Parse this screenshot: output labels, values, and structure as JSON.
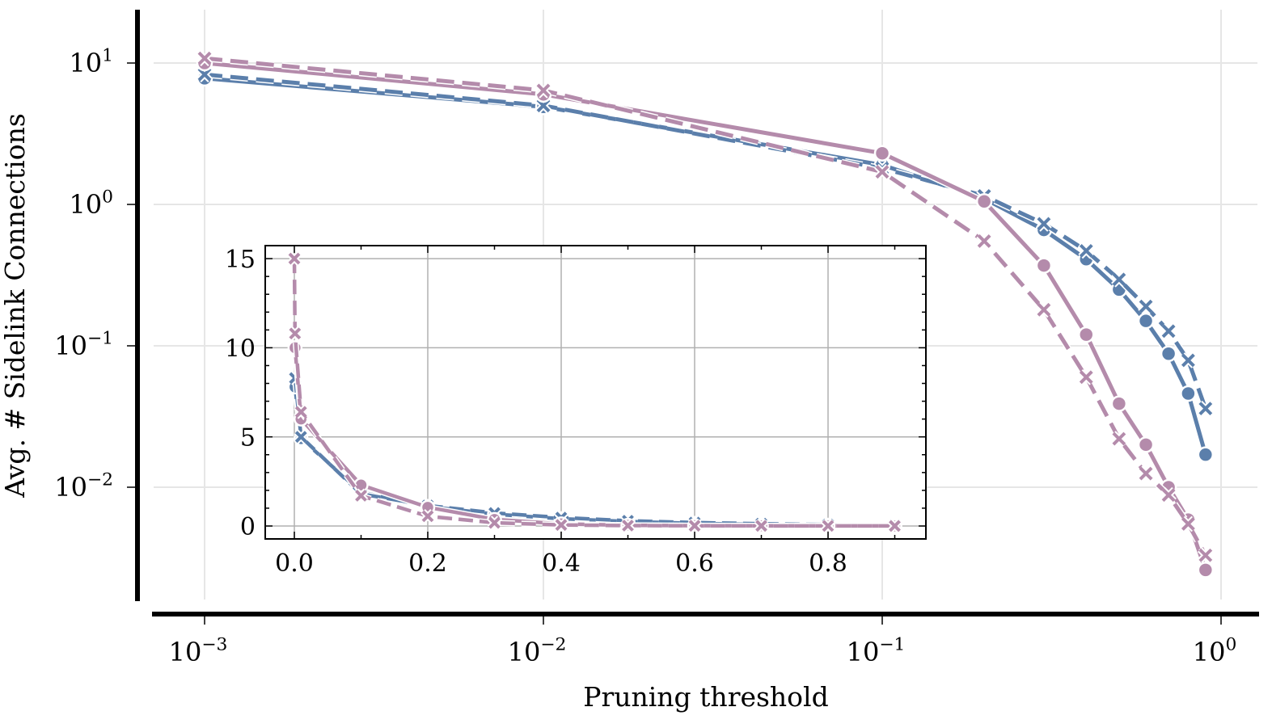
{
  "chart_data": [
    {
      "type": "line",
      "xscale": "log",
      "yscale": "log",
      "xlabel": "Pruning threshold",
      "ylabel": "Avg. # Sidelink Connections",
      "xlim": [
        0.00068,
        1.3
      ],
      "ylim": [
        0.0023,
        24
      ],
      "grid": true,
      "x_ticks": [
        {
          "value": 0.001,
          "base": "10",
          "exp": "−3"
        },
        {
          "value": 0.01,
          "base": "10",
          "exp": "−2"
        },
        {
          "value": 0.1,
          "base": "10",
          "exp": "−1"
        },
        {
          "value": 1,
          "base": "10",
          "exp": "0"
        }
      ],
      "y_ticks": [
        {
          "value": 10,
          "base": "10",
          "exp": "1"
        },
        {
          "value": 1,
          "base": "10",
          "exp": "0"
        },
        {
          "value": 0.1,
          "base": "10",
          "exp": "−1"
        },
        {
          "value": 0.01,
          "base": "10",
          "exp": "−2"
        }
      ],
      "x": [
        0.001,
        0.01,
        0.1,
        0.2,
        0.3,
        0.4,
        0.5,
        0.6,
        0.7,
        0.8,
        0.9
      ],
      "series": [
        {
          "name": "blue-solid-circle",
          "color": "#5b7fab",
          "dash": "solid",
          "marker": "circle",
          "values": [
            7.8,
            4.9,
            1.9,
            1.1,
            0.66,
            0.41,
            0.25,
            0.15,
            0.088,
            0.046,
            0.017
          ]
        },
        {
          "name": "blue-dashed-x",
          "color": "#5b7fab",
          "dash": "dashed",
          "marker": "x",
          "values": [
            8.3,
            5.0,
            1.8,
            1.15,
            0.73,
            0.47,
            0.295,
            0.19,
            0.127,
            0.079,
            0.036
          ]
        },
        {
          "name": "pink-solid-circle",
          "color": "#b48bab",
          "dash": "solid",
          "marker": "circle",
          "values": [
            10.0,
            6.0,
            2.3,
            1.05,
            0.37,
            0.12,
            0.039,
            0.02,
            0.01,
            0.0059,
            0.0026
          ]
        },
        {
          "name": "pink-dashed-x",
          "color": "#b48bab",
          "dash": "dashed",
          "marker": "x",
          "values": [
            10.8,
            6.4,
            1.7,
            0.55,
            0.18,
            0.06,
            0.022,
            0.0125,
            0.0088,
            0.0055,
            0.0033
          ]
        }
      ]
    },
    {
      "type": "line",
      "inset": true,
      "xscale": "linear",
      "yscale": "linear",
      "xlim": [
        -0.045,
        0.945
      ],
      "ylim": [
        -0.7,
        15.8
      ],
      "grid": true,
      "x_ticks": [
        "0.0",
        "0.2",
        "0.4",
        "0.6",
        "0.8"
      ],
      "x_tick_values": [
        0,
        0.2,
        0.4,
        0.6,
        0.8
      ],
      "y_ticks": [
        "0",
        "5",
        "10",
        "15"
      ],
      "y_tick_values": [
        0,
        5,
        10,
        15
      ],
      "x": [
        0,
        0.001,
        0.01,
        0.1,
        0.2,
        0.3,
        0.4,
        0.5,
        0.6,
        0.7,
        0.8,
        0.9
      ],
      "series": [
        {
          "name": "blue-solid-circle",
          "color": "#5b7fab",
          "dash": "solid",
          "marker": "circle",
          "values": [
            null,
            7.8,
            4.9,
            1.9,
            1.1,
            0.66,
            0.41,
            0.25,
            0.15,
            0.088,
            0.046,
            0.017
          ]
        },
        {
          "name": "blue-dashed-x",
          "color": "#5b7fab",
          "dash": "dashed",
          "marker": "x",
          "values": [
            null,
            8.3,
            5.0,
            1.8,
            1.15,
            0.73,
            0.47,
            0.295,
            0.19,
            0.127,
            0.079,
            0.036
          ]
        },
        {
          "name": "pink-solid-circle",
          "color": "#b48bab",
          "dash": "solid",
          "marker": "circle",
          "values": [
            null,
            10.0,
            6.0,
            2.3,
            1.05,
            0.37,
            0.12,
            0.039,
            0.02,
            0.01,
            0.0059,
            0.0026
          ]
        },
        {
          "name": "pink-dashed-x",
          "color": "#b48bab",
          "dash": "dashed",
          "marker": "x",
          "values": [
            15.0,
            10.8,
            6.4,
            1.7,
            0.55,
            0.18,
            0.06,
            0.022,
            0.0125,
            0.0088,
            0.0055,
            0.0033
          ]
        }
      ]
    }
  ]
}
